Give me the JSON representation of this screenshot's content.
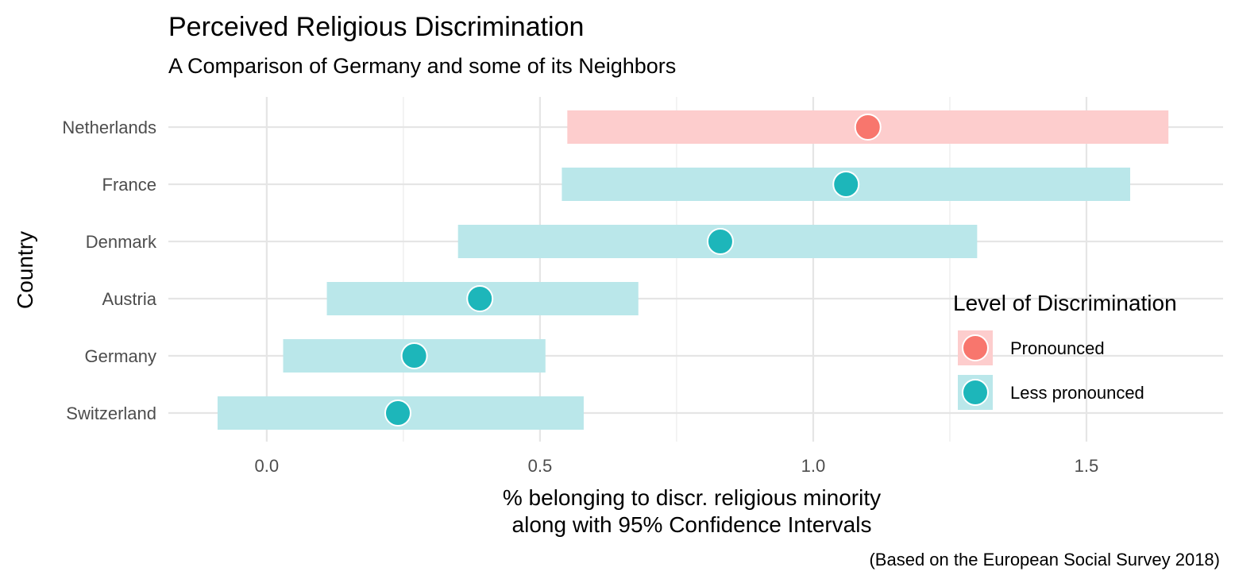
{
  "chart_data": {
    "type": "dot-interval",
    "title": "Perceived Religious Discrimination",
    "subtitle": "A Comparison of Germany and some of its Neighbors",
    "xlabel_lines": [
      "% belonging to discr. religious minority",
      "along with 95% Confidence Intervals"
    ],
    "ylabel": "Country",
    "caption": "(Based on the European Social Survey 2018)",
    "xlim": [
      -0.18,
      1.75
    ],
    "x_ticks": [
      0.0,
      0.5,
      1.0,
      1.5
    ],
    "x_tick_labels": [
      "0.0",
      "0.5",
      "1.0",
      "1.5"
    ],
    "x_minor_gridlines": [
      0.25,
      0.75,
      1.25
    ],
    "grid": true,
    "categories": [
      "Netherlands",
      "France",
      "Denmark",
      "Austria",
      "Germany",
      "Switzerland"
    ],
    "points": [
      {
        "country": "Netherlands",
        "value": 1.1,
        "lower": 0.55,
        "upper": 1.65,
        "level": "Pronounced"
      },
      {
        "country": "France",
        "value": 1.06,
        "lower": 0.54,
        "upper": 1.58,
        "level": "Less pronounced"
      },
      {
        "country": "Denmark",
        "value": 0.83,
        "lower": 0.35,
        "upper": 1.3,
        "level": "Less pronounced"
      },
      {
        "country": "Austria",
        "value": 0.39,
        "lower": 0.11,
        "upper": 0.68,
        "level": "Less pronounced"
      },
      {
        "country": "Germany",
        "value": 0.27,
        "lower": 0.03,
        "upper": 0.51,
        "level": "Less pronounced"
      },
      {
        "country": "Switzerland",
        "value": 0.24,
        "lower": -0.09,
        "upper": 0.58,
        "level": "Less pronounced"
      }
    ],
    "legend": {
      "title": "Level of Discrimination",
      "position": "right",
      "entries": [
        {
          "label": "Pronounced",
          "color": "#F8766D",
          "band_color": "#FDCDCD"
        },
        {
          "label": "Less pronounced",
          "color": "#1DB6BA",
          "band_color": "#BAE7EA"
        }
      ]
    }
  }
}
